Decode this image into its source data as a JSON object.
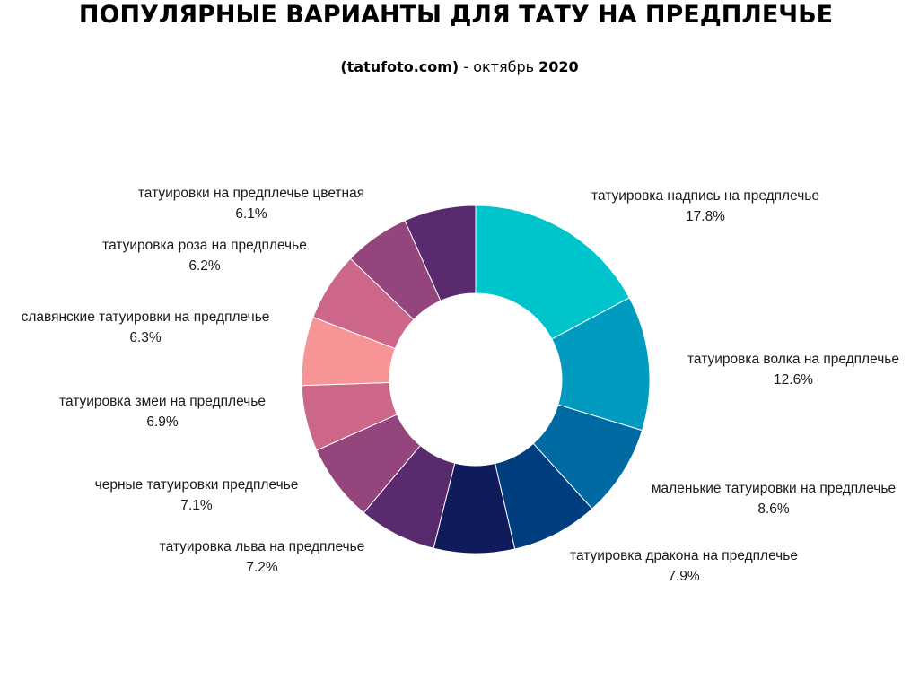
{
  "title": "ПОПУЛЯРНЫЕ ВАРИАНТЫ ДЛЯ ТАТУ НА ПРЕДПЛЕЧЬЕ",
  "subtitle": {
    "source": "(tatufoto.com)",
    "separator": " - октябрь ",
    "year": "2020"
  },
  "chart_data": {
    "type": "pie",
    "donut": true,
    "start": "12 o'clock",
    "direction": "clockwise",
    "categories": [
      "татуировка надпись на предплечье",
      "татуировка волка на предплечье",
      "маленькие татуировки на предплечье",
      "татуировка дракона на предплечье",
      "татуировка льва на предплечье",
      "черные татуировки предплечье",
      "татуировка змеи на предплечье",
      "славянские татуировки на предплечье",
      "татуировка роза на предплечье",
      "татуировки на предплечье цветная"
    ],
    "values": [
      17.8,
      12.6,
      8.6,
      7.9,
      7.2,
      7.1,
      6.9,
      6.3,
      6.2,
      6.1
    ],
    "value_labels": [
      "17.8%",
      "12.6%",
      "8.6%",
      "7.9%",
      "7.2%",
      "7.1%",
      "6.9%",
      "6.3%",
      "6.2%",
      "6.1%"
    ],
    "slice_colors": [
      "#00c4cc",
      "#009bbf",
      "#006aa3",
      "#003e80",
      "#0f1b5a",
      "#5a2a6e",
      "#93457c",
      "#cc6789",
      "#f79495",
      "#cc6789",
      "#93457c",
      "#5a2a6e"
    ],
    "extra_segments_note": "",
    "legend": "none"
  }
}
